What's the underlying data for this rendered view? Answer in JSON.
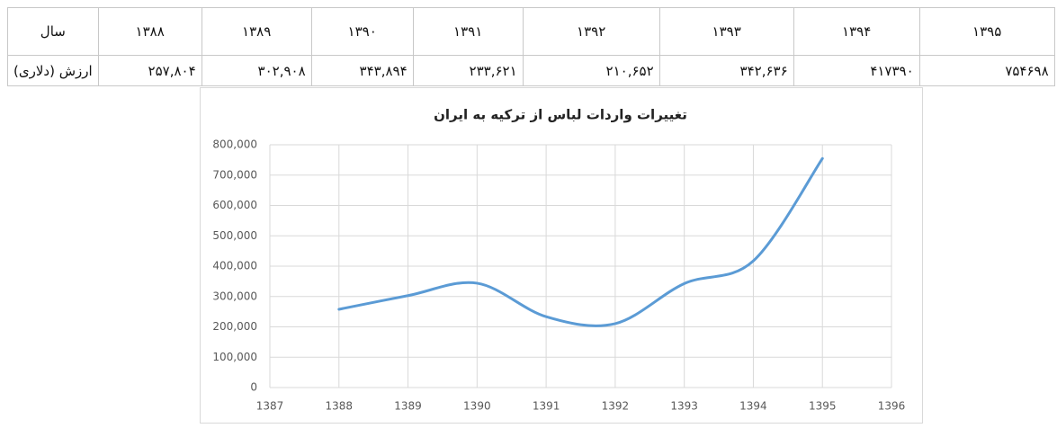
{
  "table": {
    "rows": [
      [
        "سال",
        "۱۳۸۸",
        "۱۳۸۹",
        "۱۳۹۰",
        "۱۳۹۱",
        "۱۳۹۲",
        "۱۳۹۳",
        "۱۳۹۴",
        "۱۳۹۵"
      ],
      [
        "ارزش (دلاری)",
        "۲۵۷,۸۰۴",
        "۳۰۲,۹۰۸",
        "۳۴۳,۸۹۴",
        "۲۳۳,۶۲۱",
        "۲۱۰,۶۵۲",
        "۳۴۲,۶۳۶",
        "۴۱۷۳۹۰",
        "۷۵۴۶۹۸"
      ]
    ]
  },
  "chart_data": {
    "type": "line",
    "title": "تغییرات واردات لباس از ترکیه به ایران",
    "x": [
      1388,
      1389,
      1390,
      1391,
      1392,
      1393,
      1394,
      1395
    ],
    "values": [
      257804,
      302908,
      343894,
      233621,
      210652,
      342636,
      417390,
      754698
    ],
    "color": "#5b9bd5",
    "smooth": true,
    "grid": true,
    "xlim": [
      1387,
      1396
    ],
    "xticks": [
      1387,
      1388,
      1389,
      1390,
      1391,
      1392,
      1393,
      1394,
      1395,
      1396
    ],
    "ylim": [
      0,
      800000
    ],
    "yticks": [
      0,
      {
        "value": 100000,
        "label": "100,000"
      },
      {
        "value": 200000,
        "label": "200,000"
      },
      {
        "value": 300000,
        "label": "300,000"
      },
      {
        "value": 400000,
        "label": "400,000"
      },
      {
        "value": 500000,
        "label": "500,000"
      },
      {
        "value": 600000,
        "label": "600,000"
      },
      {
        "value": 700000,
        "label": "700,000"
      },
      {
        "value": 800000,
        "label": "800,000"
      }
    ]
  }
}
